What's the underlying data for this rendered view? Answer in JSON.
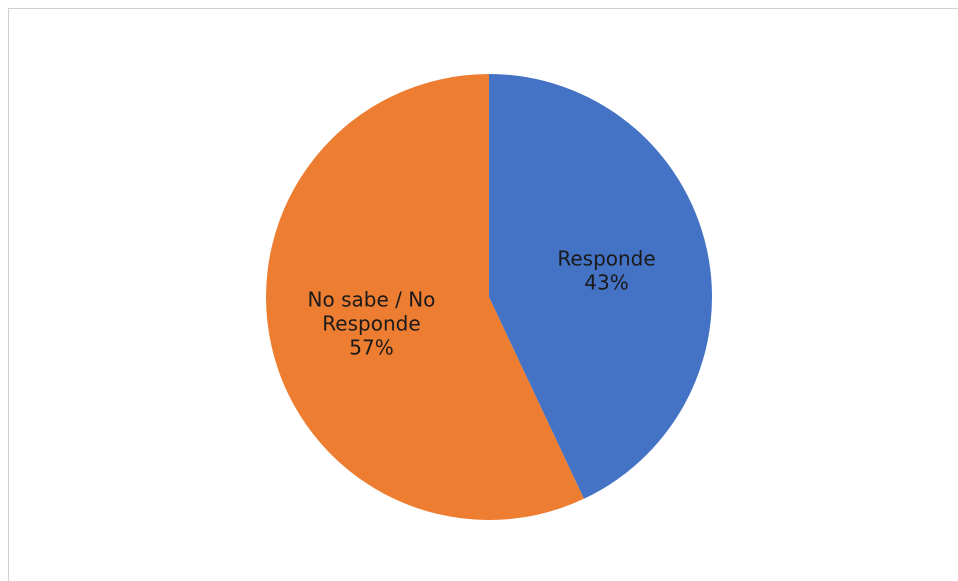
{
  "chart_data": {
    "type": "pie",
    "title": "",
    "slices": [
      {
        "label_lines": [
          "Responde"
        ],
        "percent_label": "43%",
        "value": 43,
        "color": "#4472C4"
      },
      {
        "label_lines": [
          "No sabe / No",
          "Responde"
        ],
        "percent_label": "57%",
        "value": 57,
        "color": "#ED7D31"
      }
    ],
    "legend": "none",
    "start": "12 o'clock, clockwise"
  }
}
